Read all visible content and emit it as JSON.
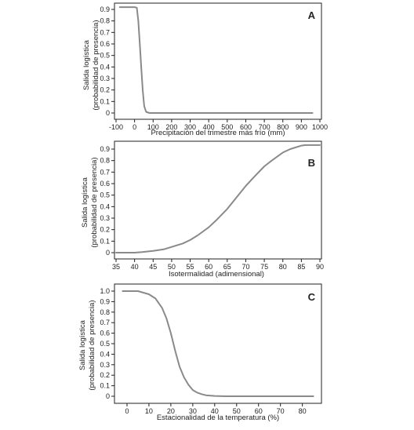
{
  "chart_data": [
    {
      "panel_letter": "A",
      "type": "line",
      "title": "",
      "xlabel": "Precipitación del trimestre más frío (mm)",
      "ylabel_lines": [
        "Salida logística",
        "(probabilidad de presencia)"
      ],
      "xlim": [
        -100,
        1000
      ],
      "ylim": [
        0,
        0.9
      ],
      "xticks": [
        -100,
        0,
        100,
        200,
        300,
        400,
        500,
        600,
        700,
        800,
        900,
        1000
      ],
      "yticks": [
        0,
        0.1,
        0.2,
        0.3,
        0.4,
        0.5,
        0.6,
        0.7,
        0.8,
        0.9
      ],
      "grid": false,
      "legend": "none",
      "line_color": "#8a8a8a",
      "series": [
        {
          "x": [
            -80,
            -50,
            0,
            12,
            20,
            28,
            36,
            44,
            52,
            62,
            80,
            200,
            400,
            600,
            800,
            960
          ],
          "y": [
            0.92,
            0.92,
            0.92,
            0.915,
            0.8,
            0.6,
            0.4,
            0.2,
            0.06,
            0.01,
            0.0,
            0.0,
            0.0,
            0.0,
            0.0,
            0.0
          ]
        }
      ]
    },
    {
      "panel_letter": "B",
      "type": "line",
      "title": "",
      "xlabel": "Isotermalidad (adimensional)",
      "ylabel_lines": [
        "Salida logística",
        "(probabilidad de presencia)"
      ],
      "xlim": [
        35,
        90
      ],
      "ylim": [
        0,
        0.9
      ],
      "xticks": [
        35,
        40,
        45,
        50,
        55,
        60,
        65,
        70,
        75,
        80,
        85,
        90
      ],
      "yticks": [
        0,
        0.1,
        0.2,
        0.3,
        0.4,
        0.5,
        0.6,
        0.7,
        0.8,
        0.9
      ],
      "grid": false,
      "legend": "none",
      "line_color": "#8a8a8a",
      "series": [
        {
          "x": [
            35,
            40,
            42,
            45,
            48,
            50,
            53,
            55,
            57,
            60,
            62,
            65,
            67,
            70,
            72,
            75,
            77,
            80,
            82,
            85,
            86,
            87,
            90
          ],
          "y": [
            0.0,
            0.0,
            0.005,
            0.015,
            0.03,
            0.05,
            0.08,
            0.11,
            0.15,
            0.22,
            0.28,
            0.38,
            0.46,
            0.58,
            0.65,
            0.75,
            0.8,
            0.87,
            0.9,
            0.93,
            0.935,
            0.935,
            0.935
          ]
        }
      ]
    },
    {
      "panel_letter": "C",
      "type": "line",
      "title": "",
      "xlabel": "Estacionalidad de la temperatura (%)",
      "ylabel_lines": [
        "Salida logística",
        "(probabilidad de presencia)"
      ],
      "xlim": [
        -5,
        88
      ],
      "ylim": [
        0,
        1.0
      ],
      "xticks": [
        0,
        10,
        20,
        30,
        40,
        50,
        60,
        70,
        80
      ],
      "yticks": [
        0,
        0.1,
        0.2,
        0.3,
        0.4,
        0.5,
        0.6,
        0.7,
        0.8,
        0.9,
        1.0
      ],
      "grid": false,
      "legend": "none",
      "line_color": "#8a8a8a",
      "series": [
        {
          "x": [
            -2,
            0,
            5,
            10,
            13,
            16,
            18,
            20,
            22,
            24,
            26,
            28,
            30,
            32,
            34,
            36,
            40,
            45,
            50,
            60,
            70,
            80,
            85
          ],
          "y": [
            1.0,
            1.0,
            1.0,
            0.97,
            0.93,
            0.84,
            0.74,
            0.6,
            0.43,
            0.28,
            0.18,
            0.11,
            0.06,
            0.035,
            0.02,
            0.01,
            0.003,
            0.0,
            0.0,
            0.0,
            0.0,
            0.0,
            0.0
          ]
        }
      ]
    }
  ]
}
